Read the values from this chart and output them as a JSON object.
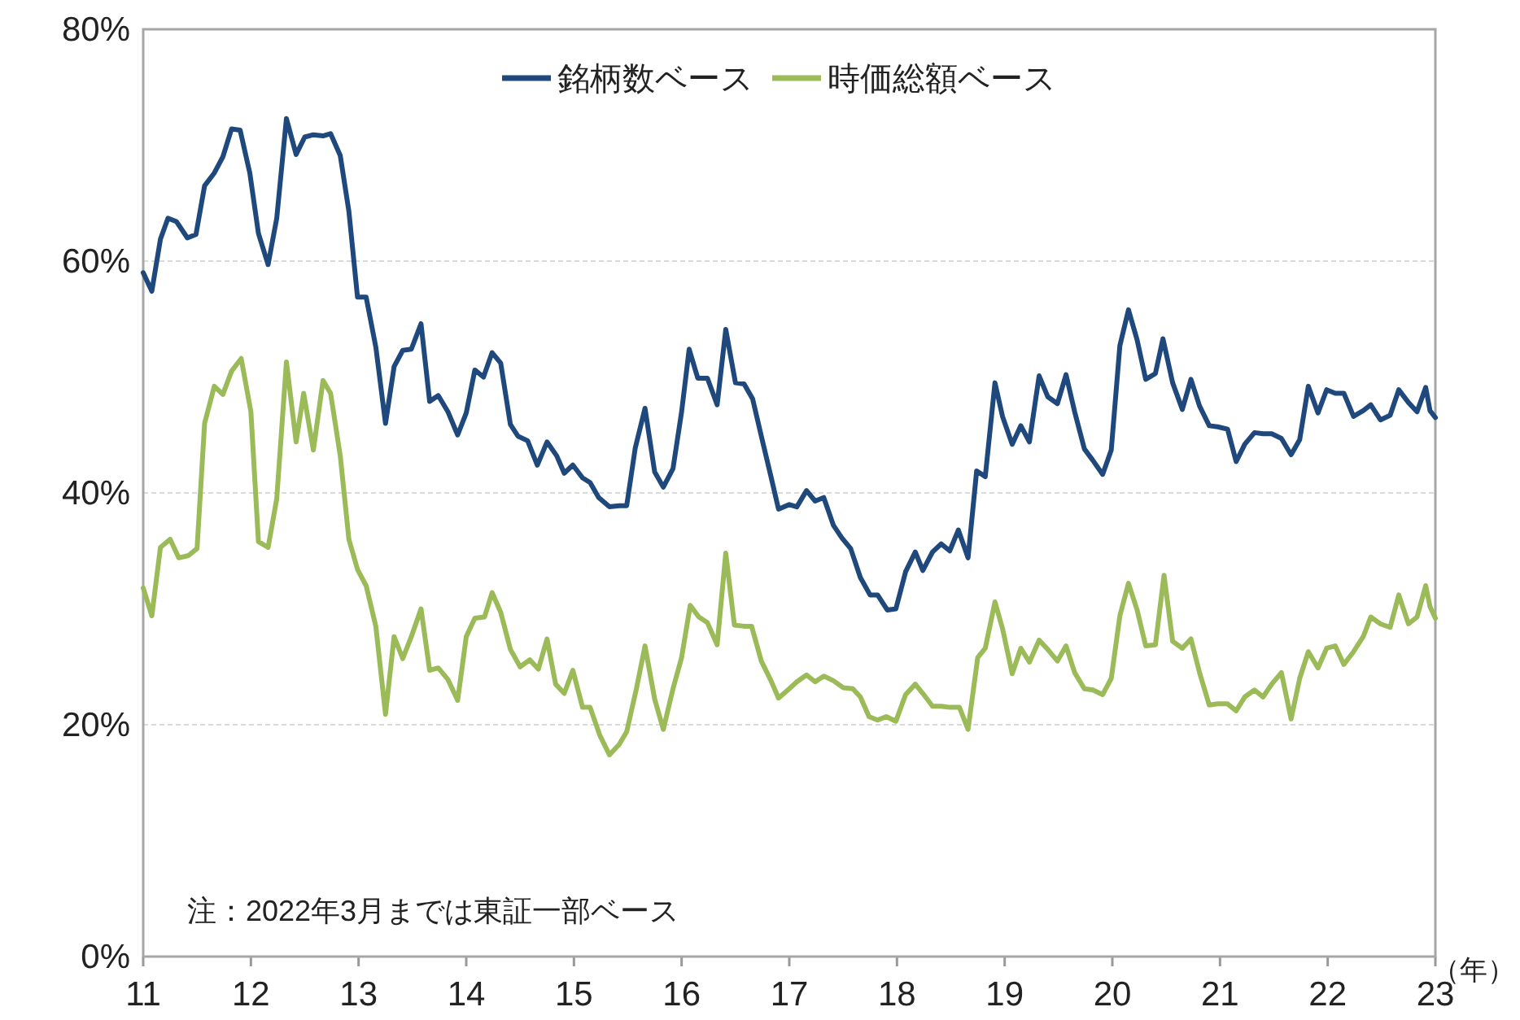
{
  "chart_data": {
    "type": "line",
    "xlabel": "（年）",
    "annotations": [
      "注：2022年3月までは東証一部ベース"
    ],
    "xlim": [
      11,
      23
    ],
    "xticks": [
      11,
      12,
      13,
      14,
      15,
      16,
      17,
      18,
      19,
      20,
      21,
      22,
      23
    ],
    "ylim": [
      0,
      80
    ],
    "yticks": [
      {
        "value": 0,
        "label": "0%"
      },
      {
        "value": 20,
        "label": "20%"
      },
      {
        "value": 40,
        "label": "40%"
      },
      {
        "value": 60,
        "label": "60%"
      },
      {
        "value": 80,
        "label": "80%"
      }
    ],
    "grid": "y",
    "legend": "top",
    "marker": "none",
    "line_style": "solid",
    "series": [
      {
        "name": "銘柄数ベース",
        "color": "#1f497d",
        "x": [
          11.0,
          11.08,
          11.16,
          11.23,
          11.31,
          11.41,
          11.49,
          11.57,
          11.66,
          11.74,
          11.82,
          11.9,
          11.99,
          12.07,
          12.16,
          12.24,
          12.33,
          12.42,
          12.5,
          12.58,
          12.67,
          12.74,
          12.83,
          12.91,
          12.99,
          13.07,
          13.16,
          13.25,
          13.33,
          13.41,
          13.49,
          13.58,
          13.66,
          13.74,
          13.83,
          13.92,
          14.0,
          14.08,
          14.16,
          14.24,
          14.32,
          14.41,
          14.48,
          14.57,
          14.66,
          14.75,
          14.84,
          14.91,
          14.99,
          15.08,
          15.15,
          15.23,
          15.33,
          15.42,
          15.49,
          15.57,
          15.66,
          15.75,
          15.83,
          15.92,
          16.0,
          16.07,
          16.15,
          16.24,
          16.33,
          16.41,
          16.5,
          16.58,
          16.66,
          16.74,
          16.83,
          16.9,
          17.0,
          17.07,
          17.16,
          17.24,
          17.32,
          17.41,
          17.49,
          17.57,
          17.66,
          17.75,
          17.82,
          17.91,
          17.99,
          18.08,
          18.17,
          18.24,
          18.33,
          18.41,
          18.49,
          18.57,
          18.66,
          18.74,
          18.82,
          18.91,
          18.98,
          19.07,
          19.15,
          19.23,
          19.32,
          19.4,
          19.49,
          19.57,
          19.65,
          19.74,
          19.82,
          19.91,
          19.99,
          20.07,
          20.15,
          20.23,
          20.31,
          20.4,
          20.47,
          20.56,
          20.65,
          20.73,
          20.81,
          20.9,
          20.98,
          21.07,
          21.15,
          21.23,
          21.32,
          21.4,
          21.48,
          21.57,
          21.66,
          21.74,
          21.82,
          21.91,
          21.99,
          22.07,
          22.15,
          22.24,
          22.33,
          22.4,
          22.49,
          22.58,
          22.66,
          22.75,
          22.83,
          22.91,
          22.95,
          23.0
        ],
        "values": [
          59.0,
          57.4,
          61.9,
          63.7,
          63.4,
          62.0,
          62.3,
          66.5,
          67.6,
          69.0,
          71.4,
          71.3,
          67.6,
          62.4,
          59.7,
          63.7,
          72.3,
          69.2,
          70.7,
          70.9,
          70.8,
          71.0,
          69.1,
          64.3,
          56.9,
          56.9,
          52.6,
          46.0,
          50.9,
          52.3,
          52.4,
          54.6,
          47.9,
          48.4,
          47.0,
          45.0,
          46.9,
          50.6,
          50.0,
          52.1,
          51.2,
          45.9,
          44.9,
          44.5,
          42.4,
          44.4,
          43.2,
          41.7,
          42.4,
          41.3,
          40.9,
          39.6,
          38.8,
          38.9,
          38.9,
          43.9,
          47.3,
          41.8,
          40.5,
          42.1,
          47.0,
          52.4,
          49.9,
          49.9,
          47.6,
          54.1,
          49.5,
          49.4,
          48.1,
          44.9,
          41.4,
          38.6,
          39.0,
          38.8,
          40.2,
          39.3,
          39.6,
          37.2,
          36.1,
          35.2,
          32.7,
          31.2,
          31.2,
          29.9,
          30.0,
          33.2,
          34.9,
          33.3,
          34.9,
          35.6,
          35.0,
          36.8,
          34.4,
          41.9,
          41.4,
          49.5,
          46.6,
          44.2,
          45.8,
          44.4,
          50.1,
          48.3,
          47.7,
          50.2,
          47.0,
          43.8,
          42.8,
          41.6,
          43.7,
          52.7,
          55.8,
          53.2,
          49.8,
          50.3,
          53.3,
          49.5,
          47.2,
          49.8,
          47.5,
          45.8,
          45.7,
          45.5,
          42.7,
          44.2,
          45.2,
          45.1,
          45.1,
          44.7,
          43.3,
          44.6,
          49.2,
          46.9,
          48.9,
          48.6,
          48.6,
          46.6,
          47.1,
          47.6,
          46.3,
          46.7,
          48.9,
          47.8,
          47.0,
          49.1,
          47.1,
          46.5
        ]
      },
      {
        "name": "時価総額ベース",
        "color": "#9bbb59",
        "x": [
          11.0,
          11.08,
          11.16,
          11.25,
          11.33,
          11.42,
          11.5,
          11.57,
          11.66,
          11.74,
          11.82,
          11.91,
          12.0,
          12.07,
          12.16,
          12.24,
          12.33,
          12.42,
          12.49,
          12.58,
          12.67,
          12.74,
          12.83,
          12.91,
          12.99,
          13.07,
          13.16,
          13.25,
          13.33,
          13.41,
          13.49,
          13.58,
          13.66,
          13.74,
          13.83,
          13.92,
          14.0,
          14.08,
          14.17,
          14.24,
          14.32,
          14.41,
          14.5,
          14.59,
          14.67,
          14.75,
          14.83,
          14.91,
          14.99,
          15.08,
          15.15,
          15.24,
          15.33,
          15.42,
          15.49,
          15.58,
          15.66,
          15.75,
          15.83,
          15.92,
          16.0,
          16.08,
          16.16,
          16.24,
          16.33,
          16.41,
          16.49,
          16.58,
          16.65,
          16.74,
          16.83,
          16.9,
          17.0,
          17.07,
          17.16,
          17.24,
          17.32,
          17.41,
          17.5,
          17.59,
          17.66,
          17.74,
          17.82,
          17.9,
          17.99,
          18.08,
          18.17,
          18.24,
          18.33,
          18.41,
          18.49,
          18.58,
          18.66,
          18.75,
          18.82,
          18.91,
          18.98,
          19.07,
          19.15,
          19.23,
          19.32,
          19.4,
          19.49,
          19.57,
          19.65,
          19.74,
          19.82,
          19.91,
          19.99,
          20.07,
          20.15,
          20.23,
          20.31,
          20.4,
          20.48,
          20.56,
          20.65,
          20.73,
          20.81,
          20.9,
          20.98,
          21.07,
          21.15,
          21.23,
          21.32,
          21.4,
          21.48,
          21.57,
          21.66,
          21.74,
          21.82,
          21.91,
          21.99,
          22.07,
          22.15,
          22.24,
          22.33,
          22.4,
          22.49,
          22.58,
          22.66,
          22.75,
          22.83,
          22.91,
          22.95,
          23.0
        ],
        "values": [
          31.8,
          29.4,
          35.3,
          36.0,
          34.4,
          34.6,
          35.2,
          46.0,
          49.2,
          48.5,
          50.5,
          51.6,
          47.0,
          35.8,
          35.3,
          39.5,
          51.3,
          44.4,
          48.6,
          43.7,
          49.7,
          48.6,
          43.2,
          36.0,
          33.4,
          32.0,
          28.5,
          20.9,
          27.6,
          25.7,
          27.6,
          30.0,
          24.7,
          24.9,
          23.9,
          22.1,
          27.6,
          29.2,
          29.3,
          31.4,
          29.7,
          26.5,
          25.0,
          25.6,
          24.8,
          27.4,
          23.5,
          22.7,
          24.7,
          21.5,
          21.5,
          19.1,
          17.4,
          18.3,
          19.4,
          23.1,
          26.8,
          22.2,
          19.6,
          23.1,
          25.8,
          30.3,
          29.3,
          28.8,
          26.9,
          34.8,
          28.6,
          28.5,
          28.5,
          25.5,
          23.8,
          22.3,
          23.1,
          23.7,
          24.3,
          23.7,
          24.2,
          23.8,
          23.2,
          23.1,
          22.4,
          20.7,
          20.4,
          20.7,
          20.3,
          22.6,
          23.5,
          22.7,
          21.6,
          21.6,
          21.5,
          21.5,
          19.6,
          25.8,
          26.6,
          30.6,
          28.3,
          24.4,
          26.6,
          25.4,
          27.3,
          26.5,
          25.5,
          26.8,
          24.5,
          23.1,
          23.0,
          22.6,
          24.0,
          29.4,
          32.2,
          29.9,
          26.8,
          26.9,
          32.9,
          27.2,
          26.6,
          27.4,
          24.5,
          21.7,
          21.8,
          21.8,
          21.2,
          22.4,
          23.0,
          22.4,
          23.5,
          24.5,
          20.5,
          24.0,
          26.3,
          24.9,
          26.6,
          26.8,
          25.2,
          26.3,
          27.6,
          29.3,
          28.7,
          28.4,
          31.2,
          28.7,
          29.3,
          32.0,
          30.2,
          29.2
        ]
      }
    ]
  }
}
